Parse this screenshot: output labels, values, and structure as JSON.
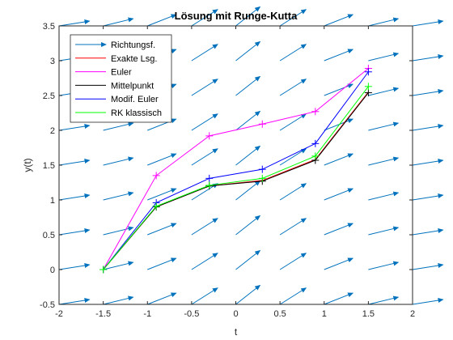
{
  "chart_data": {
    "type": "line",
    "title": "Lösung mit Runge-Kutta",
    "xlabel": "t",
    "ylabel": "y(t)",
    "xlim": [
      -2,
      2
    ],
    "ylim": [
      -0.5,
      3.5
    ],
    "xticks": [
      -2,
      -1.5,
      -1,
      -0.5,
      0,
      0.5,
      1,
      1.5,
      2
    ],
    "yticks": [
      -0.5,
      0,
      0.5,
      1,
      1.5,
      2,
      2.5,
      3,
      3.5
    ],
    "xtick_labels": [
      "-2",
      "-1.5",
      "-1",
      "-0.5",
      "0",
      "0.5",
      "1",
      "1.5",
      "2"
    ],
    "ytick_labels": [
      "-0.5",
      "0",
      "0.5",
      "1",
      "1.5",
      "2",
      "2.5",
      "3",
      "3.5"
    ],
    "grid": false,
    "legend_position": "top-left",
    "x": [
      -1.5,
      -0.9,
      -0.3,
      0.3,
      0.9,
      1.5
    ],
    "series": [
      {
        "name": "Exakte Lsg.",
        "color": "#ff0000",
        "marker": "none",
        "values": [
          0.0,
          0.9,
          1.2,
          1.28,
          1.58,
          2.55
        ]
      },
      {
        "name": "Euler",
        "color": "#ff00ff",
        "marker": "+",
        "values": [
          0.0,
          1.35,
          1.92,
          2.09,
          2.27,
          2.89
        ]
      },
      {
        "name": "Mittelpunkt",
        "color": "#000000",
        "marker": "+",
        "values": [
          0.0,
          0.9,
          1.2,
          1.27,
          1.57,
          2.54
        ]
      },
      {
        "name": "Modif. Euler",
        "color": "#0000ff",
        "marker": "+",
        "values": [
          0.0,
          0.96,
          1.31,
          1.44,
          1.81,
          2.84
        ]
      },
      {
        "name": "RK klassisch",
        "color": "#00ff00",
        "marker": "+",
        "values": [
          0.0,
          0.91,
          1.21,
          1.31,
          1.63,
          2.63
        ]
      }
    ],
    "direction_field": {
      "name": "Richtungsf.",
      "color": "#0072bd",
      "t": [
        -2,
        -1.5,
        -1,
        -0.5,
        0,
        0.5,
        1,
        1.5,
        2
      ],
      "y": [
        -0.5,
        0,
        0.5,
        1,
        1.5,
        2,
        2.5,
        3,
        3.5
      ],
      "slope_rule": "1/(1+t^2)"
    }
  }
}
